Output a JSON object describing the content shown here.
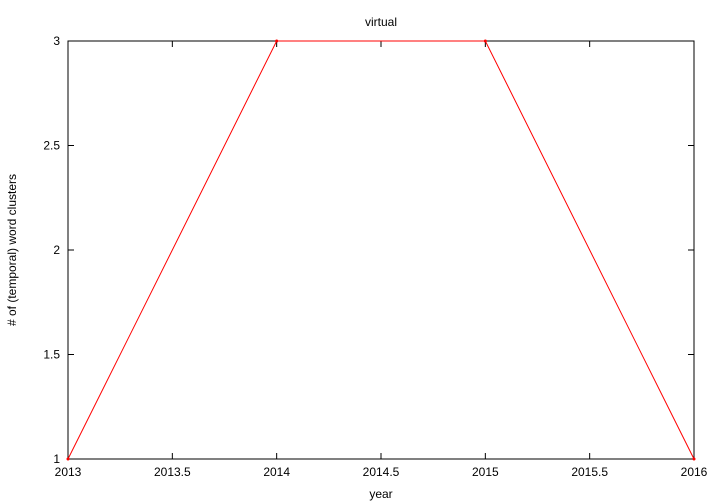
{
  "chart_data": {
    "type": "line",
    "title": "virtual",
    "xlabel": "year",
    "ylabel": "# of (temporal) word clusters",
    "xlim": [
      2013,
      2016
    ],
    "ylim": [
      1,
      3
    ],
    "xticks": [
      2013,
      2013.5,
      2014,
      2014.5,
      2015,
      2015.5,
      2016
    ],
    "yticks": [
      1,
      1.5,
      2,
      2.5,
      3
    ],
    "grid": false,
    "series": [
      {
        "color": "#ff0000",
        "x": [
          2013,
          2014,
          2015,
          2016
        ],
        "y": [
          1,
          3,
          3,
          1
        ]
      }
    ]
  }
}
